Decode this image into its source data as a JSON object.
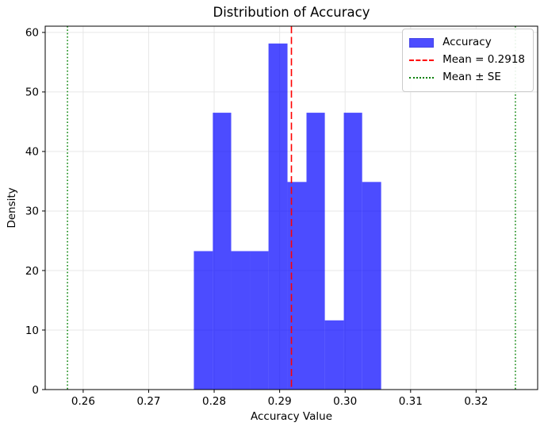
{
  "figure": {
    "title": "Distribution of Accuracy",
    "xlabel": "Accuracy Value",
    "ylabel": "Density"
  },
  "legend": {
    "position": "upper right",
    "labels": [
      "Accuracy",
      "Mean = 0.2918",
      "Mean ± SE"
    ]
  },
  "colors": {
    "bar_fill": "#0000ff",
    "bar_opacity": 0.7,
    "bar_rendered": "#4d4dff",
    "mean_line": "#ff0000",
    "se_line": "#008000",
    "grid": "#e7e7e7",
    "spine": "#000000",
    "legend_border": "#cccccc"
  },
  "chart_data": {
    "type": "bar",
    "subtype": "histogram",
    "title": "Distribution of Accuracy",
    "xlabel": "Accuracy Value",
    "ylabel": "Density",
    "bin_edges": [
      0.2769,
      0.2798,
      0.2826,
      0.2855,
      0.2883,
      0.2912,
      0.2941,
      0.2969,
      0.2998,
      0.3026,
      0.3055
    ],
    "densities": [
      23.26,
      46.51,
      23.26,
      23.26,
      58.14,
      34.88,
      46.51,
      11.63,
      46.51,
      34.88
    ],
    "mean": 0.2918,
    "se_estimate": 0.0342,
    "mean_minus_se": 0.2576,
    "mean_plus_se": 0.326,
    "xlim": [
      0.2542,
      0.3294
    ],
    "ylim": [
      0,
      61.05
    ],
    "xticks": [
      0.26,
      0.27,
      0.28,
      0.29,
      0.3,
      0.31,
      0.32
    ],
    "xtick_labels": [
      "0.26",
      "0.27",
      "0.28",
      "0.29",
      "0.30",
      "0.31",
      "0.32"
    ],
    "yticks": [
      0,
      10,
      20,
      30,
      40,
      50,
      60
    ],
    "ytick_labels": [
      "0",
      "10",
      "20",
      "30",
      "40",
      "50",
      "60"
    ],
    "grid": true,
    "legend_position": "upper right",
    "legend_labels": [
      "Accuracy",
      "Mean = 0.2918",
      "Mean ± SE"
    ]
  }
}
